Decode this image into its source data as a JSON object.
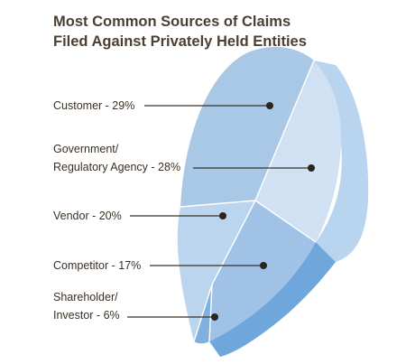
{
  "chart_data": {
    "type": "pie",
    "title_lines": [
      "Most Common Sources of Claims",
      "Filed Against Privately Held Entities"
    ],
    "slices": [
      {
        "label_lines": [
          "Customer - 29%"
        ],
        "category": "Customer",
        "value": 29
      },
      {
        "label_lines": [
          "Government/",
          "Regulatory Agency - 28%"
        ],
        "category": "Government/Regulatory Agency",
        "value": 28
      },
      {
        "label_lines": [
          "Vendor - 20%"
        ],
        "category": "Vendor",
        "value": 20
      },
      {
        "label_lines": [
          "Competitor - 17%"
        ],
        "category": "Competitor",
        "value": 17
      },
      {
        "label_lines": [
          "Shareholder/",
          "Investor - 6%"
        ],
        "category": "Shareholder/Investor",
        "value": 6
      }
    ],
    "colors": {
      "customer_top": "#a9c8e6",
      "government_top": "#cfe1f3",
      "vendor_top": "#bcd5ee",
      "competitor_top": "#9fc2e6",
      "shareholder_top": "#7fb0df",
      "side_light": "#b9d4ef",
      "side_dark": "#6fa6dc",
      "title": "#4a3f33",
      "label": "#3a3026"
    }
  }
}
